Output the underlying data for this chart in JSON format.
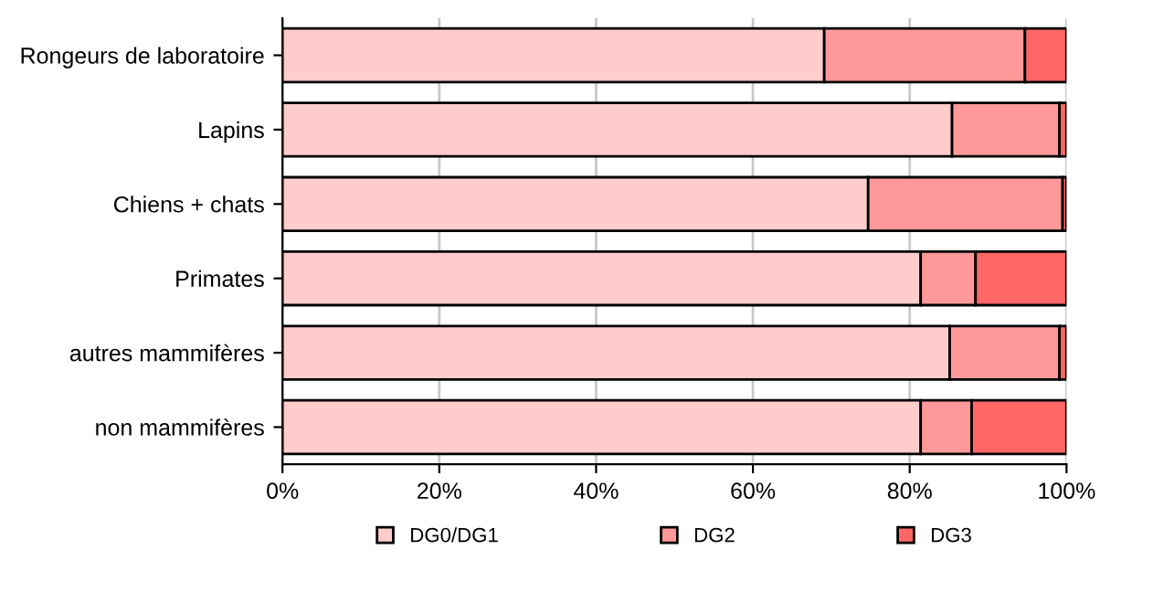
{
  "chart_data": {
    "type": "bar",
    "orientation": "horizontal",
    "stacked": true,
    "categories": [
      "Rongeurs de laboratoire",
      "Lapins",
      "Chiens + chats",
      "Primates",
      "autres mammifères",
      "non mammifères"
    ],
    "series": [
      {
        "name": "DG0/DG1",
        "color": "#ffcccc",
        "values": [
          69.1,
          85.4,
          74.7,
          81.4,
          85.1,
          81.4
        ]
      },
      {
        "name": "DG2",
        "color": "#ff9999",
        "values": [
          25.6,
          13.7,
          24.8,
          7.0,
          14.0,
          6.5
        ]
      },
      {
        "name": "DG3",
        "color": "#ff6666",
        "values": [
          5.3,
          0.9,
          0.5,
          11.6,
          0.9,
          12.1
        ]
      }
    ],
    "xlim": [
      0,
      100
    ],
    "xticks": [
      {
        "value": 0,
        "label": "0%"
      },
      {
        "value": 20,
        "label": "20%"
      },
      {
        "value": 40,
        "label": "40%"
      },
      {
        "value": 60,
        "label": "60%"
      },
      {
        "value": 80,
        "label": "80%"
      },
      {
        "value": 100,
        "label": "100%"
      }
    ],
    "grid": "x",
    "legend": "bottom"
  }
}
